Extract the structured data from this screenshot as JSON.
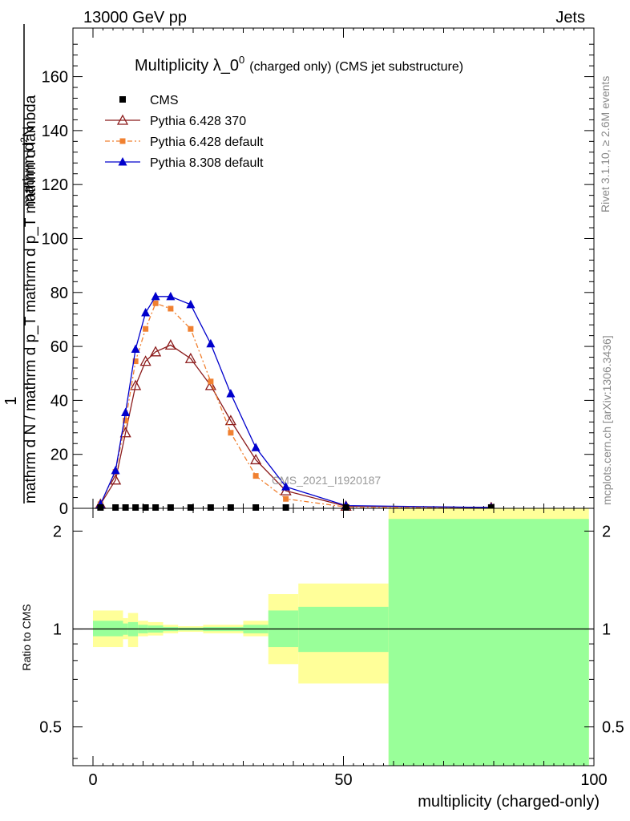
{
  "header": {
    "energy_label": "13000 GeV pp",
    "category_label": "Jets"
  },
  "side_labels": {
    "rivet": "Rivet 3.1.10, ≥ 2.6M events",
    "mcplots": "mcplots.cern.ch [arXiv:1306.3436]"
  },
  "chart_data": {
    "type": "line",
    "title_main": "Multiplicity λ_0",
    "title_sup": "0",
    "title_sub": "(charged only) (CMS jet substructure)",
    "analysis_tag": "CMS_2021_I1920187",
    "xlabel": "multiplicity (charged-only)",
    "ylabel_top": "1",
    "ylabel_num": "mathrm d",
    "ylabel_num_sup": "2",
    "ylabel_num_end": "N",
    "ylabel_den": "mathrm d N / mathrm d p_T mathrm d p_T mathrm d lambda",
    "ratio_ylabel": "Ratio to CMS",
    "xlim": [
      -4,
      100
    ],
    "ylim": [
      0,
      178
    ],
    "ratio_ylim": [
      0.38,
      2.35
    ],
    "x_ticks": [
      0,
      50,
      100
    ],
    "y_ticks": [
      0,
      20,
      40,
      60,
      80,
      100,
      120,
      140,
      160
    ],
    "ratio_ticks": [
      0.5,
      1,
      2
    ],
    "legend": [
      {
        "name": "CMS",
        "color": "#000000",
        "marker": "square",
        "dash": "none"
      },
      {
        "name": "Pythia 6.428 370",
        "color": "#8b1a1a",
        "marker": "triangle-open",
        "dash": "none"
      },
      {
        "name": "Pythia 6.428 default",
        "color": "#f08030",
        "marker": "square-small",
        "dash": "dashdot"
      },
      {
        "name": "Pythia 8.308 default",
        "color": "#0000cc",
        "marker": "triangle",
        "dash": "none"
      }
    ],
    "series": [
      {
        "name": "CMS",
        "x": [
          1.5,
          4.5,
          6.5,
          8.5,
          10.5,
          12.5,
          15.5,
          19.5,
          23.5,
          27.5,
          32.5,
          38.5,
          50.5,
          79.5
        ],
        "y": [
          0.3,
          0.3,
          0.3,
          0.3,
          0.3,
          0.3,
          0.3,
          0.3,
          0.3,
          0.3,
          0.3,
          0.3,
          0.3,
          0.3
        ]
      },
      {
        "name": "Pythia 6.428 370",
        "x": [
          1.5,
          4.5,
          6.5,
          8.5,
          10.5,
          12.5,
          15.5,
          19.5,
          23.5,
          27.5,
          32.5,
          38.5,
          50.5,
          79.5
        ],
        "y": [
          1.5,
          10.5,
          28,
          45.5,
          54.5,
          58,
          60.5,
          55.5,
          45.5,
          32.5,
          18,
          6.5,
          0.8,
          0.3
        ]
      },
      {
        "name": "Pythia 6.428 default",
        "x": [
          1.5,
          4.5,
          6.5,
          8.5,
          10.5,
          12.5,
          15.5,
          19.5,
          23.5,
          27.5,
          32.5,
          38.5,
          50.5,
          79.5
        ],
        "y": [
          1.5,
          13.5,
          32.5,
          54.5,
          66.5,
          76,
          74,
          66.5,
          47,
          28,
          12,
          3.5,
          0.5,
          0.2
        ]
      },
      {
        "name": "Pythia 8.308 default",
        "x": [
          1.5,
          4.5,
          6.5,
          8.5,
          10.5,
          12.5,
          15.5,
          19.5,
          23.5,
          27.5,
          32.5,
          38.5,
          50.5,
          79.5
        ],
        "y": [
          1.5,
          14,
          35.5,
          59,
          72.5,
          78.5,
          78.5,
          75.5,
          61,
          42.5,
          22.5,
          8,
          1,
          0.3
        ]
      }
    ],
    "ratio_bands": [
      {
        "x0": 0,
        "x1": 6,
        "stat_lo": 0.95,
        "stat_hi": 1.06,
        "tot_lo": 0.88,
        "tot_hi": 1.14
      },
      {
        "x0": 6,
        "x1": 7,
        "stat_lo": 0.96,
        "stat_hi": 1.04,
        "tot_lo": 0.93,
        "tot_hi": 1.08
      },
      {
        "x0": 7,
        "x1": 9,
        "stat_lo": 0.95,
        "stat_hi": 1.05,
        "tot_lo": 0.88,
        "tot_hi": 1.12
      },
      {
        "x0": 9,
        "x1": 11,
        "stat_lo": 0.97,
        "stat_hi": 1.03,
        "tot_lo": 0.95,
        "tot_hi": 1.06
      },
      {
        "x0": 11,
        "x1": 14,
        "stat_lo": 0.975,
        "stat_hi": 1.025,
        "tot_lo": 0.955,
        "tot_hi": 1.05
      },
      {
        "x0": 14,
        "x1": 17,
        "stat_lo": 0.985,
        "stat_hi": 1.015,
        "tot_lo": 0.97,
        "tot_hi": 1.03
      },
      {
        "x0": 17,
        "x1": 22,
        "stat_lo": 0.99,
        "stat_hi": 1.01,
        "tot_lo": 0.98,
        "tot_hi": 1.02
      },
      {
        "x0": 22,
        "x1": 30,
        "stat_lo": 0.985,
        "stat_hi": 1.015,
        "tot_lo": 0.97,
        "tot_hi": 1.03
      },
      {
        "x0": 30,
        "x1": 35,
        "stat_lo": 0.97,
        "stat_hi": 1.03,
        "tot_lo": 0.95,
        "tot_hi": 1.06
      },
      {
        "x0": 35,
        "x1": 41,
        "stat_lo": 0.88,
        "stat_hi": 1.14,
        "tot_lo": 0.78,
        "tot_hi": 1.28
      },
      {
        "x0": 41,
        "x1": 59,
        "stat_lo": 0.85,
        "stat_hi": 1.17,
        "tot_lo": 0.68,
        "tot_hi": 1.38
      },
      {
        "x0": 59,
        "x1": 99,
        "stat_lo": 0.38,
        "stat_hi": 2.18,
        "tot_lo": 0.38,
        "tot_hi": 2.35
      }
    ]
  }
}
